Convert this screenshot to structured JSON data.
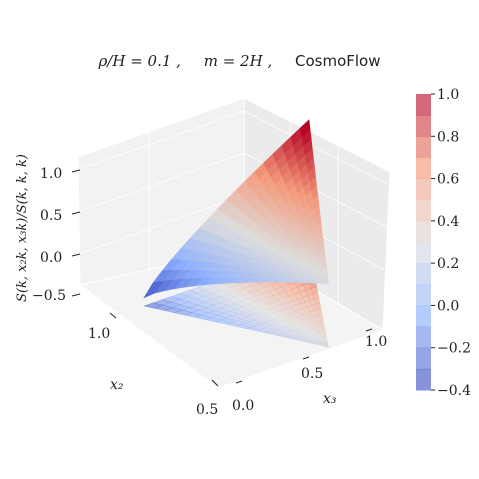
{
  "title": {
    "part1": "ρ/H = 0.1 ,",
    "part2": "m = 2H ,",
    "part3": "CosmoFlow"
  },
  "chart_data": {
    "type": "surface3d",
    "title": "ρ/H = 0.1 ,    m = 2H ,    CosmoFlow",
    "xlabel": "x2",
    "ylabel": "x3",
    "zlabel": "S(k, x2k, x3k)/S(k, k, k)",
    "axes": {
      "x2": {
        "ticks": [
          "0.5",
          "1.0"
        ],
        "range": [
          0.5,
          1.0
        ]
      },
      "x3": {
        "ticks": [
          "0.0",
          "0.5",
          "1.0"
        ],
        "range": [
          0.0,
          1.0
        ]
      },
      "z": {
        "ticks": [
          "−0.5",
          "0.0",
          "0.5",
          "1.0"
        ],
        "range": [
          -0.5,
          1.0
        ]
      }
    },
    "domain": "triangle with vertices (x2,x3) = (1.0,0.0), (1.0,1.0), (0.5,0.5)",
    "surface_values": [
      {
        "x2": 1.0,
        "x3": 0.0,
        "z": -0.3
      },
      {
        "x2": 0.75,
        "x3": 0.25,
        "z": 0.1
      },
      {
        "x2": 0.5,
        "x3": 0.5,
        "z": 0.55
      },
      {
        "x2": 1.0,
        "x3": 0.5,
        "z": 0.8
      },
      {
        "x2": 0.75,
        "x3": 0.75,
        "z": 0.9
      },
      {
        "x2": 1.0,
        "x3": 1.0,
        "z": 1.0
      }
    ],
    "colorbar": {
      "colormap": "coolwarm",
      "ticks": [
        "−0.4",
        "−0.2",
        "0.0",
        "0.2",
        "0.4",
        "0.6",
        "0.8",
        "1.0"
      ],
      "range": [
        -0.4,
        1.0
      ]
    },
    "contour_projection": "filled contours projected on the floor plane",
    "grid": true
  }
}
